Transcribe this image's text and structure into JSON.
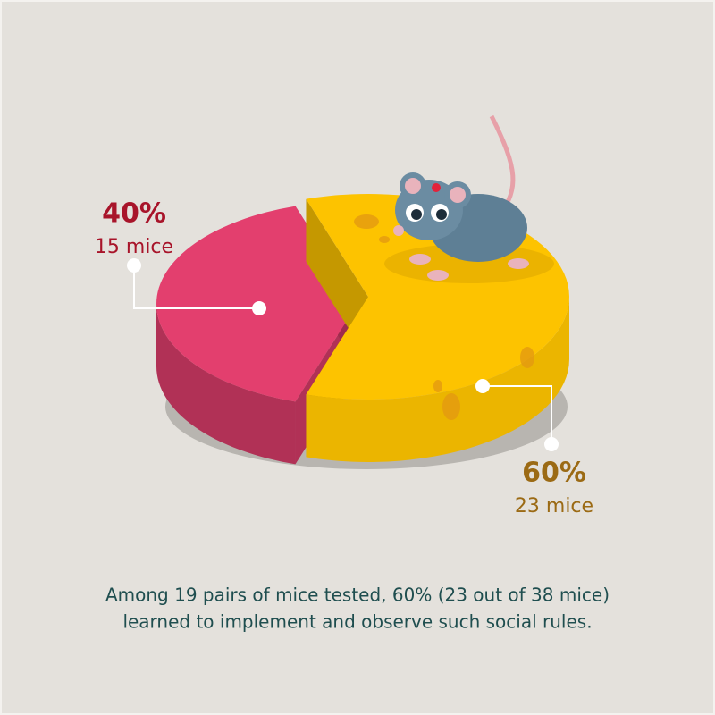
{
  "chart_data": {
    "type": "pie",
    "style": "3d",
    "values": [
      40,
      60
    ],
    "value_labels": [
      "40%",
      "60%"
    ],
    "annotations": [
      "15 mice",
      "23 mice"
    ],
    "colors": [
      "#e33f6e",
      "#fdc300"
    ],
    "label_colors": [
      "#a8142a",
      "#9b6a14"
    ],
    "caption": [
      "Among 19 pairs of mice tested, 60% (23 out of 38 mice)",
      "learned to implement and observe such social rules."
    ]
  }
}
